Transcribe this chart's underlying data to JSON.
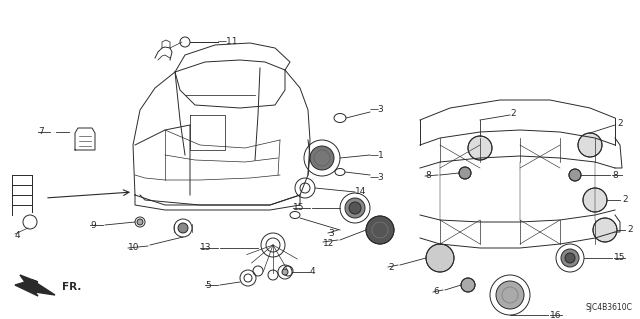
{
  "background_color": "#ffffff",
  "line_color": "#2a2a2a",
  "diagram_code": "SJC4B3610C",
  "figsize": [
    6.4,
    3.19
  ],
  "dpi": 100
}
